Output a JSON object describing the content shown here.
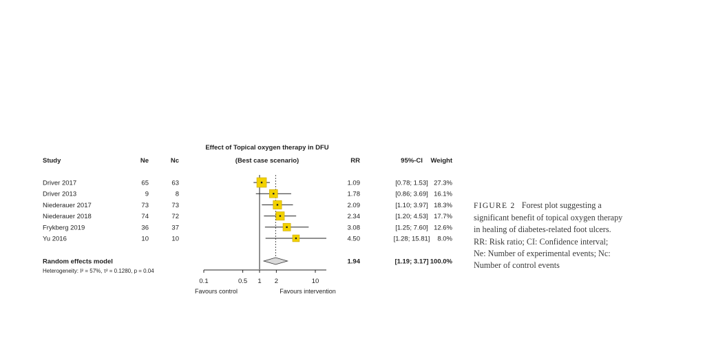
{
  "chart_data": {
    "type": "forest",
    "title": "Effect of Topical oxygen therapy in DFU",
    "subtitle": "(Best case scenario)",
    "columns": {
      "study": "Study",
      "ne": "Ne",
      "nc": "Nc",
      "rr": "RR",
      "ci": "95%-CI",
      "weight": "Weight"
    },
    "studies": [
      {
        "study": "Driver 2017",
        "ne": "65",
        "nc": "63",
        "rr": 1.09,
        "ci_low": 0.78,
        "ci_high": 1.53,
        "rr_text": "1.09",
        "ci_text": "[0.78;  1.53]",
        "weight_pct": 27.3,
        "weight_text": "27.3%"
      },
      {
        "study": "Driver 2013",
        "ne": "9",
        "nc": "8",
        "rr": 1.78,
        "ci_low": 0.86,
        "ci_high": 3.69,
        "rr_text": "1.78",
        "ci_text": "[0.86;  3.69]",
        "weight_pct": 16.1,
        "weight_text": "16.1%"
      },
      {
        "study": "Niederauer 2017",
        "ne": "73",
        "nc": "73",
        "rr": 2.09,
        "ci_low": 1.1,
        "ci_high": 3.97,
        "rr_text": "2.09",
        "ci_text": "[1.10;  3.97]",
        "weight_pct": 18.3,
        "weight_text": "18.3%"
      },
      {
        "study": "Niederauer 2018",
        "ne": "74",
        "nc": "72",
        "rr": 2.34,
        "ci_low": 1.2,
        "ci_high": 4.53,
        "rr_text": "2.34",
        "ci_text": "[1.20;  4.53]",
        "weight_pct": 17.7,
        "weight_text": "17.7%"
      },
      {
        "study": "Frykberg 2019",
        "ne": "36",
        "nc": "37",
        "rr": 3.08,
        "ci_low": 1.25,
        "ci_high": 7.6,
        "rr_text": "3.08",
        "ci_text": "[1.25;  7.60]",
        "weight_pct": 12.6,
        "weight_text": "12.6%"
      },
      {
        "study": "Yu 2016",
        "ne": "10",
        "nc": "10",
        "rr": 4.5,
        "ci_low": 1.28,
        "ci_high": 15.81,
        "rr_text": "4.50",
        "ci_text": "[1.28; 15.81]",
        "weight_pct": 8.0,
        "weight_text": "8.0%"
      }
    ],
    "summary": {
      "label": "Random effects model",
      "rr": 1.94,
      "ci_low": 1.19,
      "ci_high": 3.17,
      "rr_text": "1.94",
      "ci_text": "[1.19;  3.17]",
      "weight_text": "100.0%"
    },
    "heterogeneity": "Heterogeneity: I² = 57%, τ² = 0.1280, p = 0.04",
    "x_axis": {
      "scale": "log",
      "ticks": [
        0.1,
        0.5,
        1,
        2,
        10
      ],
      "tick_labels": [
        "0.1",
        "0.5",
        "1",
        "2",
        "10"
      ],
      "xlim": [
        0.1,
        10
      ],
      "left_label": "Favours control",
      "right_label": "Favours intervention"
    },
    "colors": {
      "square": "#f2d200",
      "square_edge": "#c9a400",
      "lines": "#222222",
      "diamond_fill": "#d9d9d9"
    }
  },
  "caption": {
    "label": "FIGURE 2",
    "lines": [
      "Forest plot suggesting a",
      "significant benefit of topical oxygen therapy",
      "in healing of diabetes-related foot ulcers.",
      "RR: Risk ratio; CI: Confidence interval;",
      "Ne: Number of experimental events; Nc:",
      "Number of control events"
    ]
  }
}
